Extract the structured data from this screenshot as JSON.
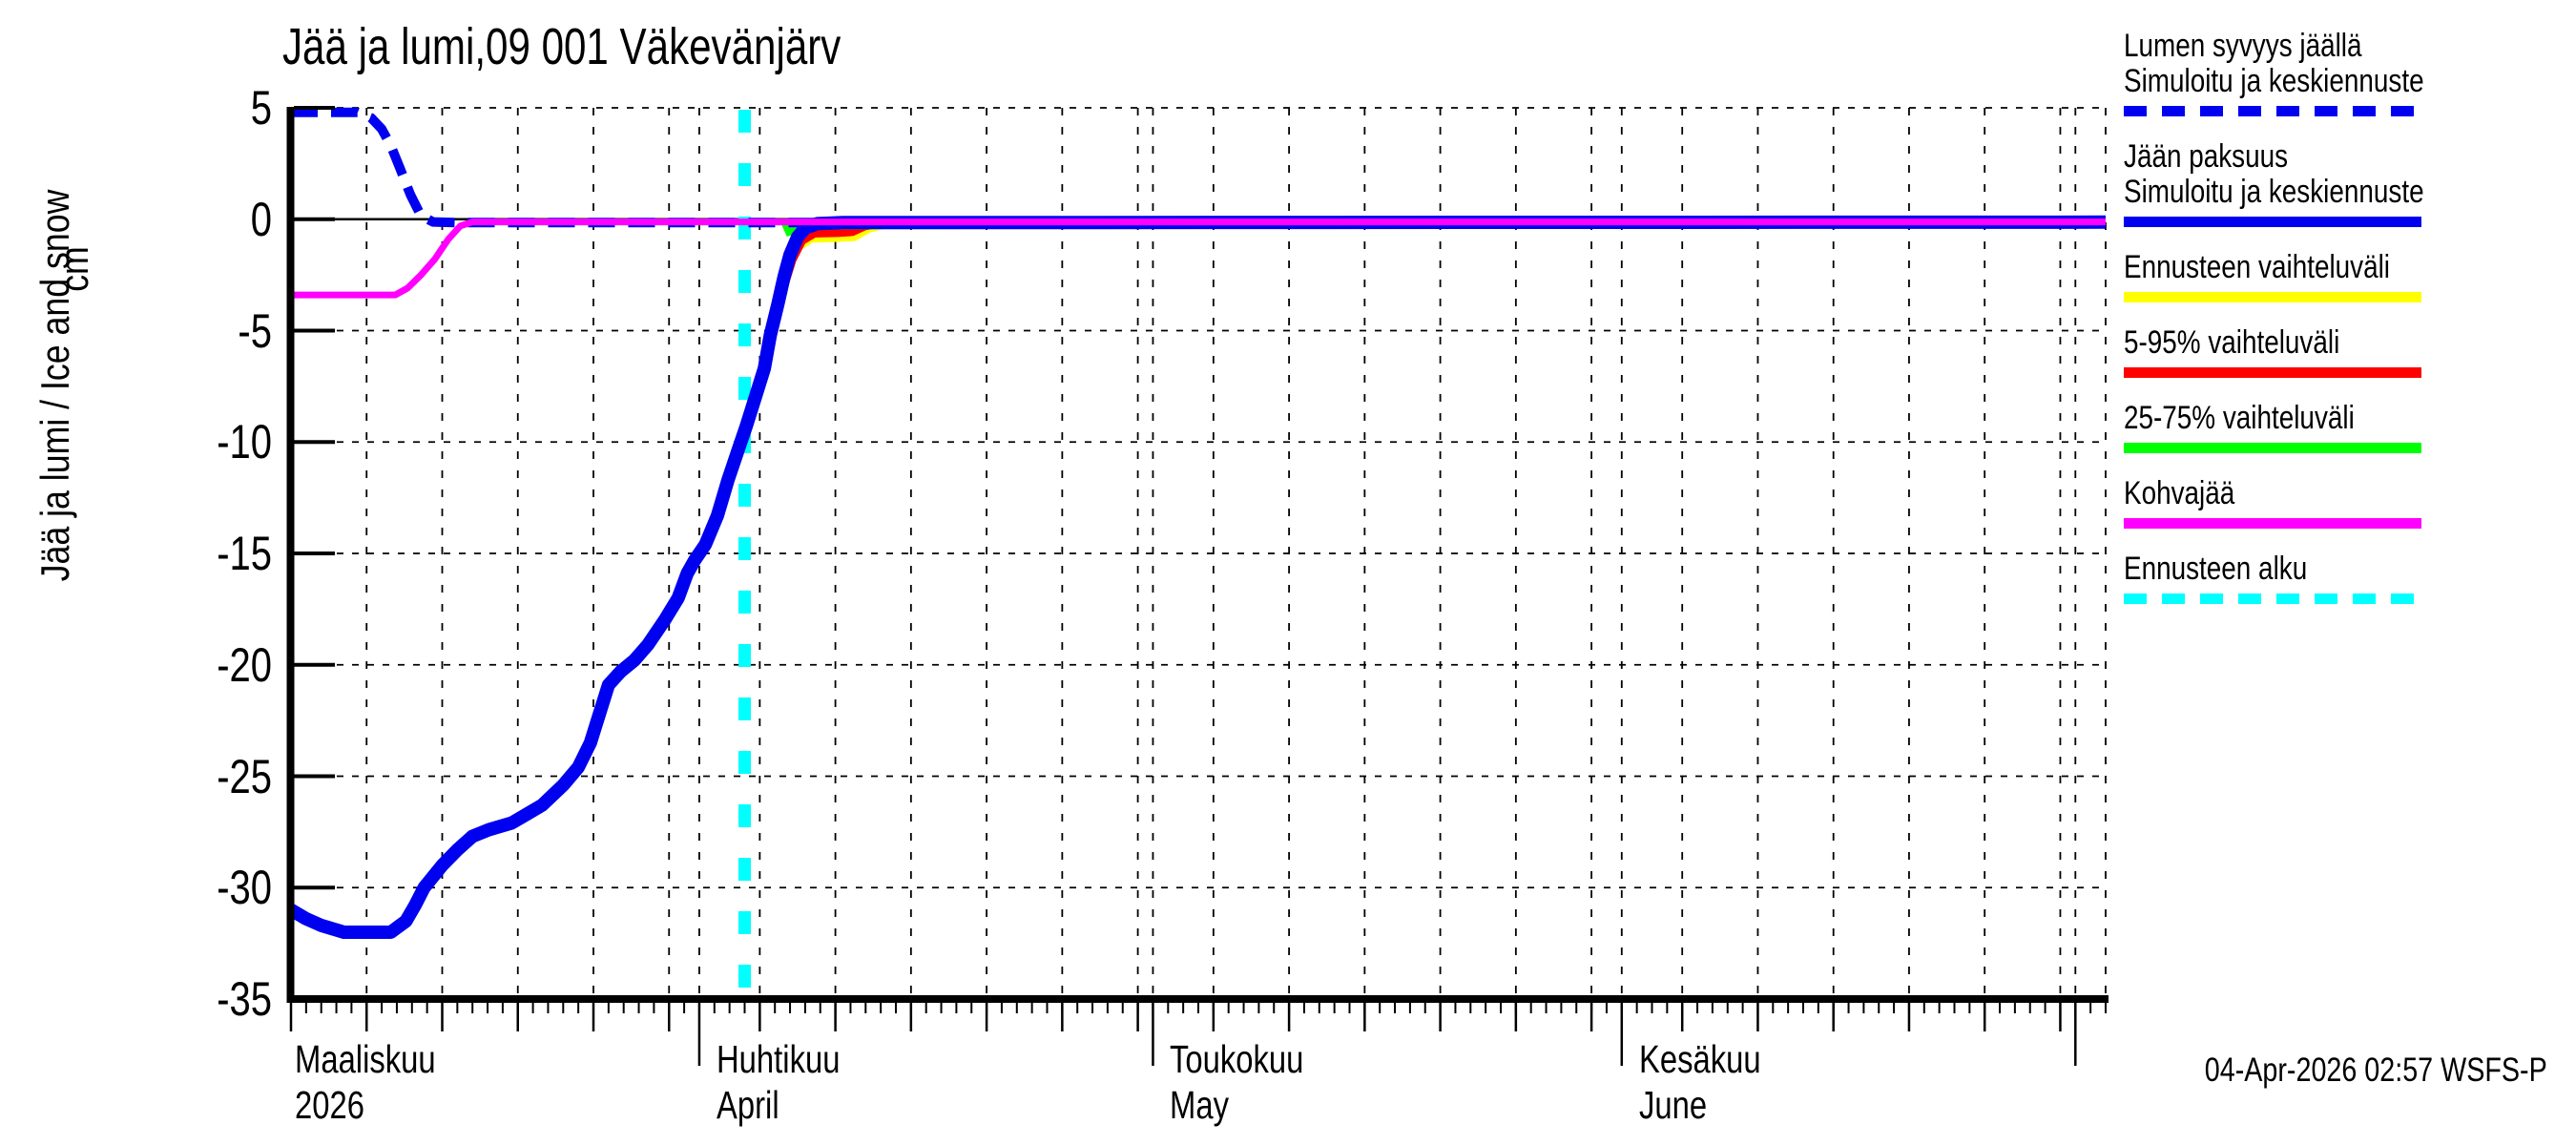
{
  "title": "Jää ja lumi,09 001 Väkevänjärv",
  "y_axis": {
    "label": "Jää ja lumi / Ice and snow",
    "unit": "cm",
    "ticks": [
      5,
      0,
      -5,
      -10,
      -15,
      -20,
      -25,
      -30,
      -35
    ]
  },
  "x_axis": {
    "months": [
      {
        "line1": "Maaliskuu",
        "line2": "2026",
        "day": 0
      },
      {
        "line1": "Huhtikuu",
        "line2": "April",
        "day": 27
      },
      {
        "line1": "Toukokuu",
        "line2": "May",
        "day": 57
      },
      {
        "line1": "Kesäkuu",
        "line2": "June",
        "day": 88
      }
    ]
  },
  "legend": [
    {
      "lines": [
        "Lumen syvyys jäällä",
        "Simuloitu ja keskiennuste"
      ],
      "color": "#0000f0",
      "style": "dashed"
    },
    {
      "lines": [
        "Jään paksuus",
        "Simuloitu ja keskiennuste"
      ],
      "color": "#0000f0",
      "style": "solid"
    },
    {
      "lines": [
        "Ennusteen vaihteluväli"
      ],
      "color": "#ffff00",
      "style": "solid"
    },
    {
      "lines": [
        "5-95% vaihteluväli"
      ],
      "color": "#ff0000",
      "style": "solid"
    },
    {
      "lines": [
        "25-75% vaihteluväli"
      ],
      "color": "#00ff00",
      "style": "solid"
    },
    {
      "lines": [
        "Kohvajää"
      ],
      "color": "#ff00ff",
      "style": "solid"
    },
    {
      "lines": [
        "Ennusteen alku"
      ],
      "color": "#00ffff",
      "style": "dashed"
    }
  ],
  "footer": "04-Apr-2026 02:57 WSFS-P",
  "chart_data": {
    "type": "line",
    "title": "Jää ja lumi,09 001 Väkevänjärv",
    "ylabel": "Jää ja lumi / Ice and snow (cm)",
    "ylim": [
      -35,
      5
    ],
    "x_unit": "days since 2026-03-05",
    "xlim": [
      0,
      120
    ],
    "x_month_starts": {
      "Apr 1": 27,
      "May 1": 57,
      "Jun 1": 88,
      "Jul 1": 118
    },
    "five_day_tick_days": [
      0,
      5,
      10,
      15,
      20,
      25,
      31,
      36,
      41,
      46,
      51,
      56,
      61,
      66,
      71,
      76,
      81,
      86,
      92,
      97,
      102,
      107,
      112,
      117
    ],
    "grid": "dashed vertical at 5-day and month-start days, dashed horizontal every 5 cm, solid line at 0",
    "forecast_start": {
      "label": "Ennusteen alku",
      "date": "2026-04-04",
      "day": 30,
      "color": "#00ffff"
    },
    "series": [
      {
        "name": "Lumen syvyys jäällä (Simuloitu ja keskiennuste)",
        "color": "#0000f0",
        "style": "dashed",
        "width": 10,
        "points": [
          [
            0,
            4.8
          ],
          [
            4.4,
            4.8
          ],
          [
            5.3,
            4.55
          ],
          [
            6.0,
            4.05
          ],
          [
            6.6,
            3.3
          ],
          [
            7.2,
            2.3
          ],
          [
            7.9,
            1.1
          ],
          [
            8.6,
            0.15
          ],
          [
            9.4,
            -0.12
          ],
          [
            11,
            -0.15
          ],
          [
            120,
            -0.15
          ]
        ]
      },
      {
        "name": "Jään paksuus (Simuloitu ja keskiennuste)",
        "color": "#0000f0",
        "style": "solid",
        "width": 14,
        "points": [
          [
            0,
            -31.0
          ],
          [
            1,
            -31.4
          ],
          [
            2,
            -31.7
          ],
          [
            3,
            -31.9
          ],
          [
            3.5,
            -32.0
          ],
          [
            6.6,
            -32.0
          ],
          [
            7.6,
            -31.5
          ],
          [
            8.2,
            -30.8
          ],
          [
            8.8,
            -30.0
          ],
          [
            10,
            -29.0
          ],
          [
            11,
            -28.3
          ],
          [
            12,
            -27.7
          ],
          [
            13.1,
            -27.4
          ],
          [
            14.6,
            -27.1
          ],
          [
            15.6,
            -26.7
          ],
          [
            16.6,
            -26.3
          ],
          [
            18,
            -25.4
          ],
          [
            19,
            -24.6
          ],
          [
            19.8,
            -23.5
          ],
          [
            20.4,
            -22.2
          ],
          [
            21,
            -20.9
          ],
          [
            21.8,
            -20.3
          ],
          [
            22.7,
            -19.8
          ],
          [
            23.6,
            -19.1
          ],
          [
            24.7,
            -18.0
          ],
          [
            25.6,
            -17.0
          ],
          [
            26.2,
            -15.9
          ],
          [
            26.7,
            -15.3
          ],
          [
            27.4,
            -14.6
          ],
          [
            28.2,
            -13.3
          ],
          [
            28.9,
            -11.7
          ],
          [
            29.7,
            -10.1
          ],
          [
            30.1,
            -9.3
          ],
          [
            30.7,
            -8.0
          ],
          [
            31.3,
            -6.7
          ],
          [
            31.7,
            -5.2
          ],
          [
            32.2,
            -3.8
          ],
          [
            32.6,
            -2.6
          ],
          [
            33.0,
            -1.6
          ],
          [
            33.5,
            -0.8
          ],
          [
            34.0,
            -0.4
          ],
          [
            34.8,
            -0.2
          ],
          [
            36.5,
            -0.15
          ],
          [
            120,
            -0.13
          ]
        ]
      },
      {
        "name": "Kohvajää",
        "color": "#ff00ff",
        "style": "solid",
        "width": 7,
        "points": [
          [
            0,
            -3.4
          ],
          [
            6.9,
            -3.4
          ],
          [
            7.7,
            -3.1
          ],
          [
            8.6,
            -2.5
          ],
          [
            9.5,
            -1.8
          ],
          [
            10.4,
            -0.9
          ],
          [
            11.2,
            -0.3
          ],
          [
            12.0,
            -0.12
          ],
          [
            120,
            -0.12
          ]
        ]
      }
    ],
    "bands": [
      {
        "name": "Ennusteen vaihteluväli",
        "color": "#ffff00",
        "upper": [
          [
            30.9,
            -7.2
          ],
          [
            31.6,
            -4.8
          ],
          [
            32.1,
            -3.3
          ],
          [
            32.6,
            -2.0
          ],
          [
            33.1,
            -1.1
          ],
          [
            33.6,
            -0.55
          ],
          [
            34.3,
            -0.3
          ],
          [
            35.6,
            -0.2
          ],
          [
            120,
            -0.18
          ]
        ],
        "lower": [
          [
            31.4,
            -7.2
          ],
          [
            32.0,
            -5.2
          ],
          [
            32.6,
            -3.5
          ],
          [
            33.2,
            -2.1
          ],
          [
            33.8,
            -1.35
          ],
          [
            34.5,
            -1.05
          ],
          [
            36.0,
            -1.02
          ],
          [
            37.3,
            -0.98
          ],
          [
            38.3,
            -0.6
          ],
          [
            39.3,
            -0.42
          ],
          [
            120,
            -0.38
          ]
        ]
      },
      {
        "name": "5-95% vaihteluväli",
        "color": "#ff0000",
        "upper": [
          [
            31.1,
            -7.2
          ],
          [
            31.8,
            -4.7
          ],
          [
            32.3,
            -3.1
          ],
          [
            32.8,
            -1.85
          ],
          [
            33.3,
            -1.0
          ],
          [
            33.8,
            -0.5
          ],
          [
            34.5,
            -0.28
          ],
          [
            36,
            -0.2
          ],
          [
            120,
            -0.18
          ]
        ],
        "lower": [
          [
            31.5,
            -7.2
          ],
          [
            32.2,
            -5.0
          ],
          [
            32.8,
            -3.2
          ],
          [
            33.4,
            -1.9
          ],
          [
            34.0,
            -1.1
          ],
          [
            34.7,
            -0.82
          ],
          [
            36.2,
            -0.8
          ],
          [
            37.2,
            -0.75
          ],
          [
            38.0,
            -0.5
          ],
          [
            39.0,
            -0.36
          ],
          [
            120,
            -0.33
          ]
        ]
      },
      {
        "name": "25-75% vaihteluväli",
        "color": "#00ff00",
        "upper": [
          [
            32.4,
            -0.2
          ],
          [
            33.2,
            -0.3
          ],
          [
            34.0,
            -0.3
          ],
          [
            36.0,
            -0.25
          ],
          [
            120,
            -0.2
          ]
        ],
        "lower": [
          [
            32.8,
            -0.78
          ],
          [
            33.5,
            -0.62
          ],
          [
            34.2,
            -0.5
          ],
          [
            36.0,
            -0.45
          ],
          [
            120,
            -0.33
          ]
        ]
      }
    ],
    "legend_position": "outside right",
    "footer_stamp": "04-Apr-2026 02:57 WSFS-P"
  }
}
